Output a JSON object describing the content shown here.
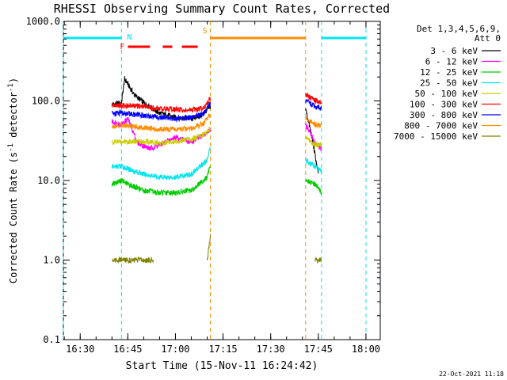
{
  "chart_data": {
    "type": "line",
    "title": "RHESSI Observing Summary Count Rates, Corrected",
    "xlabel": "Start Time (15-Nov-11 16:24:42)",
    "ylabel": "Corrected Count Rate (s⁻¹ detector⁻¹)",
    "ylabel_main": "Corrected Count Rate (s",
    "ylabel_mid": " detector",
    "ylabel_end": ")",
    "ylabel_sup": "-1",
    "y_scale": "log",
    "ylim": [
      0.1,
      1000
    ],
    "xlim": [
      "16:24:42",
      "18:04:30"
    ],
    "x_ticks": [
      "16:30",
      "16:45",
      "17:00",
      "17:15",
      "17:30",
      "17:45",
      "18:00"
    ],
    "y_ticks": [
      "0.1",
      "1.0",
      "10.0",
      "100.0",
      "1000.0"
    ],
    "detectors_label": "Det 1,3,4,5,6,9,",
    "attenuator_label": "Att 0",
    "timestamp": "22-Oct-2021 11:18",
    "legend_position": "right",
    "series": [
      {
        "name": "3 - 6 keV",
        "color": "#000000",
        "points": [
          [
            "16:40:00",
            90
          ],
          [
            "16:43:00",
            95
          ],
          [
            "16:44:00",
            190
          ],
          [
            "16:47:00",
            120
          ],
          [
            "16:50:00",
            95
          ],
          [
            "16:55:00",
            70
          ],
          [
            "17:00:00",
            62
          ],
          [
            "17:05:00",
            60
          ],
          [
            "17:08:00",
            65
          ],
          [
            "17:11:00",
            85
          ],
          [
            "17:41:00",
            80
          ],
          [
            "17:43:00",
            35
          ],
          [
            "17:45:00",
            12
          ]
        ]
      },
      {
        "name": "6 - 12 keV",
        "color": "#ff00ff",
        "points": [
          [
            "16:40:00",
            55
          ],
          [
            "16:43:00",
            50
          ],
          [
            "16:45:00",
            60
          ],
          [
            "16:48:00",
            30
          ],
          [
            "16:52:00",
            25
          ],
          [
            "16:55:00",
            28
          ],
          [
            "17:00:00",
            35
          ],
          [
            "17:05:00",
            30
          ],
          [
            "17:10:00",
            40
          ],
          [
            "17:11:00",
            45
          ],
          [
            "17:41:00",
            50
          ],
          [
            "17:44:00",
            30
          ],
          [
            "17:46:00",
            25
          ]
        ]
      },
      {
        "name": "12 - 25 keV",
        "color": "#00cc00",
        "points": [
          [
            "16:40:00",
            9
          ],
          [
            "16:43:00",
            10
          ],
          [
            "16:45:00",
            9
          ],
          [
            "16:50:00",
            7.5
          ],
          [
            "16:55:00",
            7
          ],
          [
            "17:00:00",
            7
          ],
          [
            "17:05:00",
            7.5
          ],
          [
            "17:10:00",
            11
          ],
          [
            "17:11:00",
            16
          ],
          [
            "17:41:00",
            10
          ],
          [
            "17:44:00",
            9
          ],
          [
            "17:46:00",
            7
          ]
        ]
      },
      {
        "name": "25 - 50 keV",
        "color": "#00e5ee",
        "points": [
          [
            "16:40:00",
            15
          ],
          [
            "16:43:00",
            15
          ],
          [
            "16:45:00",
            14
          ],
          [
            "16:50:00",
            12
          ],
          [
            "16:55:00",
            11
          ],
          [
            "17:00:00",
            11
          ],
          [
            "17:05:00",
            12
          ],
          [
            "17:10:00",
            18
          ],
          [
            "17:11:00",
            28
          ],
          [
            "17:41:00",
            18
          ],
          [
            "17:44:00",
            15
          ],
          [
            "17:46:00",
            13
          ]
        ]
      },
      {
        "name": "50 - 100 keV",
        "color": "#cccc00",
        "points": [
          [
            "16:40:00",
            30
          ],
          [
            "16:43:00",
            31
          ],
          [
            "16:50:00",
            31
          ],
          [
            "16:55:00",
            30
          ],
          [
            "17:00:00",
            31
          ],
          [
            "17:05:00",
            33
          ],
          [
            "17:09:00",
            38
          ],
          [
            "17:11:00",
            45
          ],
          [
            "17:41:00",
            35
          ],
          [
            "17:44:00",
            28
          ],
          [
            "17:46:00",
            28
          ]
        ]
      },
      {
        "name": "100 - 300 keV",
        "color": "#ff0000",
        "points": [
          [
            "16:40:00",
            88
          ],
          [
            "16:43:00",
            88
          ],
          [
            "16:50:00",
            85
          ],
          [
            "16:55:00",
            80
          ],
          [
            "17:00:00",
            78
          ],
          [
            "17:05:00",
            76
          ],
          [
            "17:09:00",
            82
          ],
          [
            "17:11:00",
            110
          ],
          [
            "17:41:00",
            120
          ],
          [
            "17:44:00",
            100
          ],
          [
            "17:46:00",
            95
          ]
        ]
      },
      {
        "name": "300 - 800 keV",
        "color": "#0000ff",
        "points": [
          [
            "16:40:00",
            70
          ],
          [
            "16:43:00",
            70
          ],
          [
            "16:50:00",
            66
          ],
          [
            "16:55:00",
            62
          ],
          [
            "17:00:00",
            60
          ],
          [
            "17:05:00",
            62
          ],
          [
            "17:09:00",
            70
          ],
          [
            "17:11:00",
            95
          ],
          [
            "17:41:00",
            100
          ],
          [
            "17:44:00",
            85
          ],
          [
            "17:46:00",
            80
          ]
        ]
      },
      {
        "name": "800 - 7000 keV",
        "color": "#ff8c00",
        "points": [
          [
            "16:40:00",
            48
          ],
          [
            "16:43:00",
            50
          ],
          [
            "16:50:00",
            46
          ],
          [
            "16:55:00",
            44
          ],
          [
            "17:00:00",
            44
          ],
          [
            "17:05:00",
            45
          ],
          [
            "17:09:00",
            52
          ],
          [
            "17:11:00",
            70
          ],
          [
            "17:41:00",
            60
          ],
          [
            "17:44:00",
            50
          ],
          [
            "17:46:00",
            48
          ]
        ]
      },
      {
        "name": "7000 - 15000 keV",
        "color": "#808000",
        "points": [
          [
            "16:40:00",
            1.0
          ],
          [
            "16:45:00",
            1.0
          ],
          [
            "16:50:00",
            1.0
          ],
          [
            "16:53:00",
            1.0
          ],
          [
            "17:10:00",
            1.0
          ],
          [
            "17:11:00",
            2.0
          ],
          [
            "17:44:00",
            1.0
          ],
          [
            "17:46:00",
            1.0
          ]
        ]
      }
    ],
    "flags": [
      {
        "label": "N",
        "color": "#00e5ee",
        "y_marker": "upper",
        "segments": [
          [
            "16:24:42",
            "16:43:00"
          ],
          [
            "17:46:00",
            "18:00:00"
          ]
        ],
        "boundaries": [
          "16:24:42",
          "16:43:00",
          "17:46:00",
          "18:00:00"
        ]
      },
      {
        "label": "F",
        "color": "#ff0000",
        "y_marker": "middle",
        "segments": [
          [
            "16:45:00",
            "16:52:00"
          ],
          [
            "16:56:00",
            "16:59:00"
          ],
          [
            "17:02:00",
            "17:07:00"
          ]
        ]
      },
      {
        "label": "S",
        "color": "#ff8c00",
        "y_marker": "upper",
        "segments": [
          [
            "17:11:00",
            "17:41:00"
          ]
        ],
        "boundaries": [
          "17:11:00",
          "17:41:00"
        ]
      }
    ]
  }
}
